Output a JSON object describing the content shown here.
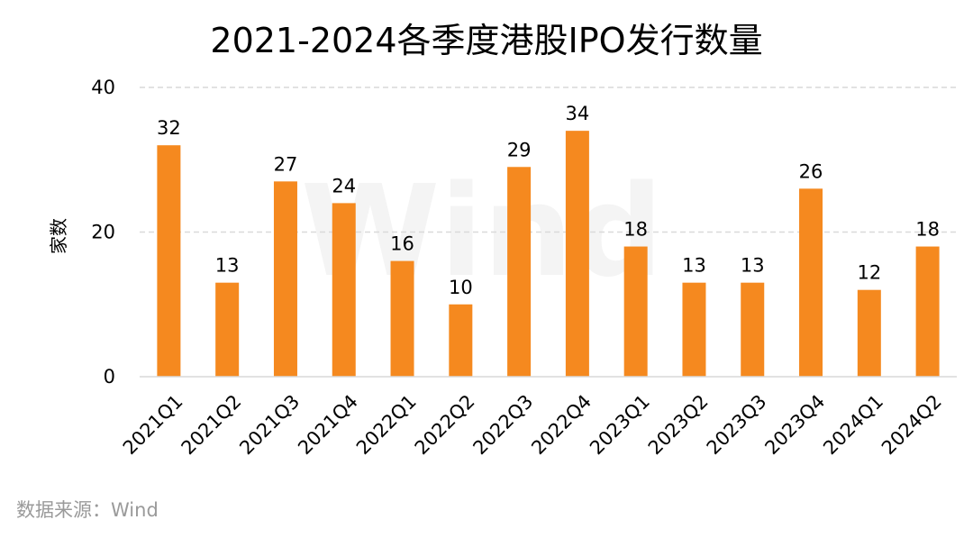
{
  "chart_data": {
    "type": "bar",
    "title": "2021-2024各季度港股IPO发行数量",
    "ylabel": "家数",
    "xlabel": "",
    "categories": [
      "2021Q1",
      "2021Q2",
      "2021Q3",
      "2021Q4",
      "2022Q1",
      "2022Q2",
      "2022Q3",
      "2022Q4",
      "2023Q1",
      "2023Q2",
      "2023Q3",
      "2023Q4",
      "2024Q1",
      "2024Q2"
    ],
    "values": [
      32,
      13,
      27,
      24,
      16,
      10,
      29,
      34,
      18,
      13,
      13,
      26,
      12,
      18
    ],
    "ylim": [
      0,
      40
    ],
    "yticks": [
      "0",
      "20",
      "40"
    ],
    "grid": true,
    "legend": "none",
    "bar_color": "#f5891f",
    "grid_color": "#d9d9d9"
  },
  "source_text": "数据来源：Wind",
  "watermark_text": "Wind"
}
